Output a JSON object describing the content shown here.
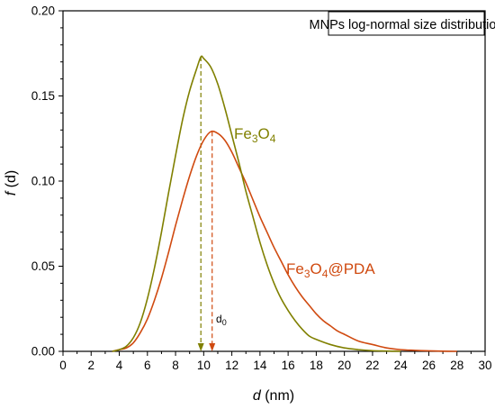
{
  "chart_data": {
    "type": "line",
    "title": "MNPs log-normal size distribution",
    "xlabel_italic": "d",
    "xlabel_rest": " (nm)",
    "ylabel_italic": "f",
    "ylabel_rest": " (d)",
    "xlim": [
      0,
      30
    ],
    "ylim": [
      0,
      0.2
    ],
    "x_ticks": [
      "0",
      "2",
      "4",
      "6",
      "8",
      "10",
      "12",
      "14",
      "16",
      "18",
      "20",
      "22",
      "24",
      "26",
      "28",
      "30"
    ],
    "y_ticks": [
      "0.00",
      "0.05",
      "0.10",
      "0.15",
      "0.20"
    ],
    "legend_placement": "top-right",
    "grid": false,
    "series": [
      {
        "name": "Fe3O4",
        "label_parts": [
          "Fe",
          "3",
          "O",
          "4",
          ""
        ],
        "color": "#808000",
        "marker_x": 9.8,
        "points": [
          [
            3.5,
            0
          ],
          [
            4,
            0.001
          ],
          [
            4.5,
            0.003
          ],
          [
            5,
            0.008
          ],
          [
            5.5,
            0.017
          ],
          [
            6,
            0.031
          ],
          [
            6.5,
            0.049
          ],
          [
            7,
            0.07
          ],
          [
            7.5,
            0.093
          ],
          [
            8,
            0.115
          ],
          [
            8.5,
            0.136
          ],
          [
            9,
            0.153
          ],
          [
            9.5,
            0.166
          ],
          [
            9.8,
            0.173
          ],
          [
            10,
            0.172
          ],
          [
            10.5,
            0.167
          ],
          [
            11,
            0.157
          ],
          [
            11.5,
            0.143
          ],
          [
            12,
            0.127
          ],
          [
            12.5,
            0.111
          ],
          [
            13,
            0.094
          ],
          [
            13.5,
            0.079
          ],
          [
            14,
            0.064
          ],
          [
            14.5,
            0.051
          ],
          [
            15,
            0.04
          ],
          [
            15.5,
            0.031
          ],
          [
            16,
            0.024
          ],
          [
            16.5,
            0.018
          ],
          [
            17,
            0.013
          ],
          [
            17.5,
            0.009
          ],
          [
            18,
            0.007
          ],
          [
            19,
            0.004
          ],
          [
            20,
            0.002
          ],
          [
            21,
            0.001
          ],
          [
            22,
            0.0004
          ],
          [
            23,
            0.0002
          ],
          [
            24,
            0
          ]
        ]
      },
      {
        "name": "Fe3O4@PDA",
        "label_parts": [
          "Fe",
          "3",
          "O",
          "4",
          "@PDA"
        ],
        "color": "#d04a10",
        "marker_x": 10.6,
        "points": [
          [
            3.5,
            0
          ],
          [
            4,
            0.001
          ],
          [
            4.5,
            0.002
          ],
          [
            5,
            0.005
          ],
          [
            5.5,
            0.011
          ],
          [
            6,
            0.019
          ],
          [
            6.5,
            0.03
          ],
          [
            7,
            0.043
          ],
          [
            7.5,
            0.058
          ],
          [
            8,
            0.074
          ],
          [
            8.5,
            0.089
          ],
          [
            9,
            0.103
          ],
          [
            9.5,
            0.115
          ],
          [
            10,
            0.124
          ],
          [
            10.5,
            0.129
          ],
          [
            11,
            0.128
          ],
          [
            11.5,
            0.124
          ],
          [
            12,
            0.117
          ],
          [
            12.5,
            0.108
          ],
          [
            13,
            0.099
          ],
          [
            13.5,
            0.089
          ],
          [
            14,
            0.079
          ],
          [
            14.5,
            0.07
          ],
          [
            15,
            0.061
          ],
          [
            15.5,
            0.053
          ],
          [
            16,
            0.045
          ],
          [
            16.5,
            0.038
          ],
          [
            17,
            0.032
          ],
          [
            17.5,
            0.027
          ],
          [
            18,
            0.022
          ],
          [
            18.5,
            0.018
          ],
          [
            19,
            0.015
          ],
          [
            19.5,
            0.012
          ],
          [
            20,
            0.01
          ],
          [
            21,
            0.006
          ],
          [
            22,
            0.004
          ],
          [
            23,
            0.002
          ],
          [
            24,
            0.001
          ],
          [
            25,
            0.0006
          ],
          [
            26,
            0.0003
          ],
          [
            27,
            0.0001
          ],
          [
            28,
            0
          ]
        ]
      }
    ],
    "annotations": {
      "d0_main": "d",
      "d0_sub": "0"
    }
  }
}
